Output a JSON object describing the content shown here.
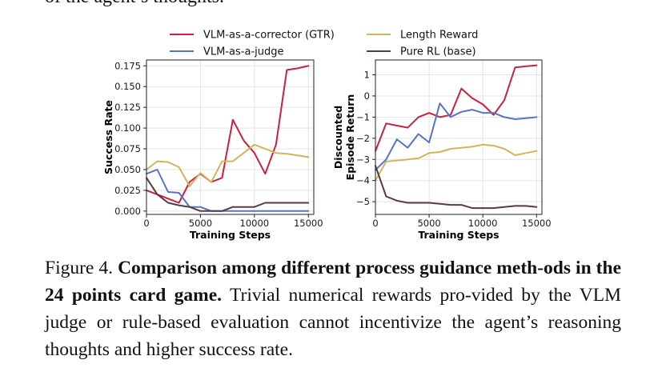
{
  "top_text": "of the agent’s thoughts.",
  "legend": [
    {
      "label": "VLM-as-a-corrector (GTR)",
      "color": "#c8223f"
    },
    {
      "label": "Length Reward",
      "color": "#d8b25a"
    },
    {
      "label": "VLM-as-a-judge",
      "color": "#5574c8"
    },
    {
      "label": "Pure RL (base)",
      "color": "#5a3a42"
    }
  ],
  "chart_data": [
    {
      "type": "line",
      "xlabel": "Training Steps",
      "ylabel": "Success Rate",
      "xlim": [
        0,
        15500
      ],
      "ylim": [
        -0.004,
        0.182
      ],
      "xticks": [
        0,
        5000,
        10000,
        15000
      ],
      "xtick_labels": [
        "0",
        "5000",
        "10000",
        "15000"
      ],
      "yticks": [
        0.0,
        0.025,
        0.05,
        0.075,
        0.1,
        0.125,
        0.15,
        0.175
      ],
      "ytick_labels": [
        "0.000",
        "0.025",
        "0.050",
        "0.075",
        "0.100",
        "0.125",
        "0.150",
        "0.175"
      ],
      "grid": true,
      "series": [
        {
          "name": "VLM-as-a-corrector (GTR)",
          "color": "#c8223f",
          "x": [
            0,
            1000,
            2000,
            3000,
            4000,
            5000,
            6000,
            7000,
            8000,
            9000,
            10000,
            11000,
            12000,
            13000,
            14000,
            15000
          ],
          "y": [
            0.025,
            0.02,
            0.015,
            0.01,
            0.035,
            0.045,
            0.035,
            0.04,
            0.11,
            0.085,
            0.07,
            0.045,
            0.08,
            0.17,
            0.172,
            0.175
          ]
        },
        {
          "name": "Length Reward",
          "color": "#d8b25a",
          "x": [
            0,
            1000,
            2000,
            3000,
            4000,
            5000,
            6000,
            7000,
            8000,
            9000,
            10000,
            11000,
            12000,
            13000,
            14000,
            15000
          ],
          "y": [
            0.05,
            0.06,
            0.059,
            0.053,
            0.03,
            0.046,
            0.035,
            0.06,
            0.06,
            0.07,
            0.08,
            0.075,
            0.07,
            0.069,
            0.067,
            0.065
          ]
        },
        {
          "name": "VLM-as-a-judge",
          "color": "#5574c8",
          "x": [
            0,
            1000,
            2000,
            3000,
            4000,
            5000,
            6000,
            7000,
            8000,
            9000,
            10000,
            11000,
            12000,
            13000,
            14000,
            15000
          ],
          "y": [
            0.045,
            0.05,
            0.023,
            0.022,
            0.005,
            0.005,
            0.0,
            0.0,
            0.0,
            0.0,
            0.0,
            0.0,
            0.0,
            0.0,
            0.0,
            0.0
          ]
        },
        {
          "name": "Pure RL (base)",
          "color": "#5a3a42",
          "x": [
            0,
            1000,
            2000,
            3000,
            4000,
            5000,
            6000,
            7000,
            8000,
            9000,
            10000,
            11000,
            12000,
            13000,
            14000,
            15000
          ],
          "y": [
            0.04,
            0.02,
            0.01,
            0.007,
            0.005,
            0.0,
            0.0,
            0.0,
            0.005,
            0.005,
            0.005,
            0.01,
            0.01,
            0.01,
            0.01,
            0.01
          ]
        }
      ]
    },
    {
      "type": "line",
      "xlabel": "Training Steps",
      "ylabel": [
        "Discounted",
        "Episode Return"
      ],
      "xlim": [
        0,
        15500
      ],
      "ylim": [
        -5.6,
        1.7
      ],
      "xticks": [
        0,
        5000,
        10000,
        15000
      ],
      "xtick_labels": [
        "0",
        "5000",
        "10000",
        "15000"
      ],
      "yticks": [
        -5,
        -4,
        -3,
        -2,
        -1,
        0,
        1
      ],
      "ytick_labels": [
        "−5",
        "−4",
        "−3",
        "−2",
        "−1",
        "0",
        "1"
      ],
      "grid": true,
      "series": [
        {
          "name": "VLM-as-a-corrector (GTR)",
          "color": "#c8223f",
          "x": [
            0,
            1000,
            2000,
            3000,
            4000,
            5000,
            6000,
            7000,
            8000,
            9000,
            10000,
            11000,
            12000,
            13000,
            14000,
            15000
          ],
          "y": [
            -2.6,
            -1.3,
            -1.4,
            -1.5,
            -1.0,
            -0.8,
            -1.0,
            -0.9,
            0.35,
            -0.1,
            -0.4,
            -0.9,
            -0.2,
            1.35,
            1.4,
            1.45
          ]
        },
        {
          "name": "Length Reward",
          "color": "#d8b25a",
          "x": [
            0,
            1000,
            2000,
            3000,
            4000,
            5000,
            6000,
            7000,
            8000,
            9000,
            10000,
            11000,
            12000,
            13000,
            14000,
            15000
          ],
          "y": [
            -4.0,
            -3.1,
            -3.05,
            -3.0,
            -2.95,
            -2.7,
            -2.65,
            -2.5,
            -2.45,
            -2.4,
            -2.3,
            -2.35,
            -2.5,
            -2.8,
            -2.7,
            -2.6
          ]
        },
        {
          "name": "VLM-as-a-judge",
          "color": "#5574c8",
          "x": [
            0,
            1000,
            2000,
            3000,
            4000,
            5000,
            6000,
            7000,
            8000,
            9000,
            10000,
            11000,
            12000,
            13000,
            14000,
            15000
          ],
          "y": [
            -3.5,
            -3.0,
            -2.05,
            -2.45,
            -1.8,
            -2.2,
            -0.35,
            -1.0,
            -0.75,
            -0.65,
            -0.8,
            -0.8,
            -1.0,
            -1.1,
            -1.05,
            -1.0
          ]
        },
        {
          "name": "Pure RL (base)",
          "color": "#5a3a42",
          "x": [
            0,
            1000,
            2000,
            3000,
            4000,
            5000,
            6000,
            7000,
            8000,
            9000,
            10000,
            11000,
            12000,
            13000,
            14000,
            15000
          ],
          "y": [
            -3.3,
            -4.75,
            -4.95,
            -5.05,
            -5.05,
            -5.05,
            -5.1,
            -5.15,
            -5.15,
            -5.3,
            -5.3,
            -5.3,
            -5.25,
            -5.2,
            -5.2,
            -5.25
          ]
        }
      ]
    }
  ],
  "caption": {
    "label": "Figure 4.",
    "bold": "Comparison among different process guidance meth-ods in the 24 points card game.",
    "text": "Trivial numerical rewards pro-vided by the VLM judge or rule-based evaluation cannot incentivize the agent’s reasoning thoughts and higher success rate."
  }
}
